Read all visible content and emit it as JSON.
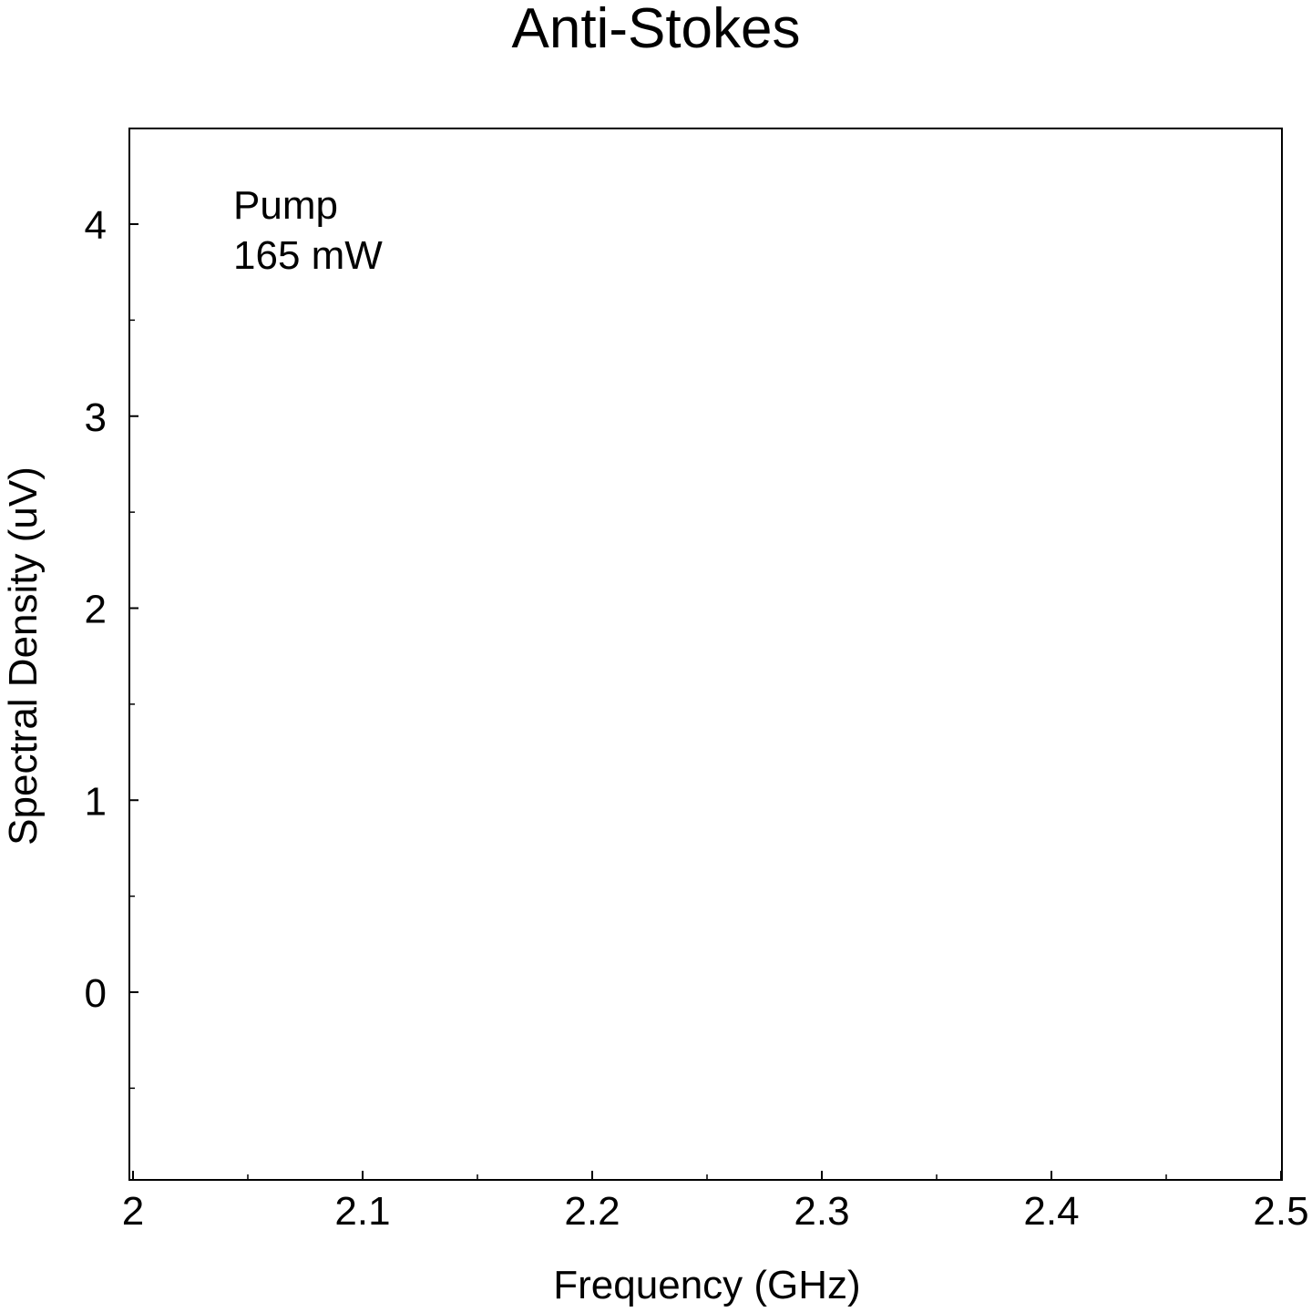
{
  "chart_data": {
    "type": "line",
    "title": "Anti-Stokes",
    "xlabel": "Frequency (GHz)",
    "ylabel": "Spectral Density (uV)",
    "xlim": [
      2.0,
      2.5
    ],
    "ylim": [
      -0.9,
      4.5
    ],
    "x_ticks": [
      2.0,
      2.1,
      2.2,
      2.3,
      2.4,
      2.5
    ],
    "x_tick_labels": [
      "2",
      "2.1",
      "2.2",
      "2.3",
      "2.4",
      "2.5"
    ],
    "y_ticks": [
      0,
      1,
      2,
      3,
      4
    ],
    "y_tick_labels": [
      "0",
      "1",
      "2",
      "3",
      "4"
    ],
    "x_minor_ticks": [
      2.05,
      2.15,
      2.25,
      2.35,
      2.45
    ],
    "y_minor_ticks": [
      -0.5,
      0.5,
      1.5,
      2.5,
      3.5
    ],
    "annotations": [
      "Pump",
      "165 mW"
    ],
    "grid": false,
    "series": []
  }
}
